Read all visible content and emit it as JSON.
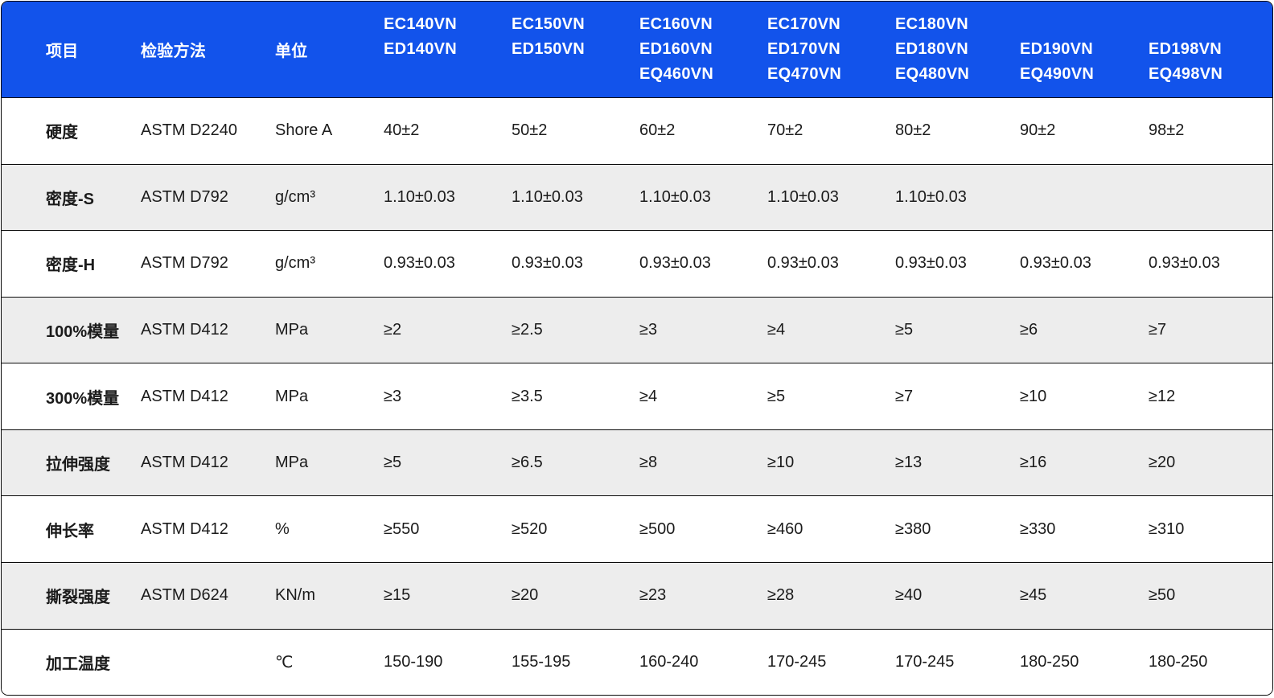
{
  "colors": {
    "header_bg": "#1253EB",
    "header_text": "#FFFFFF",
    "body_text": "#1B1B1B",
    "alt_row_bg": "#EDEDED",
    "border": "#0A0A0A"
  },
  "header": {
    "item": "项目",
    "method": "检验方法",
    "unit": "单位",
    "products": [
      {
        "line1": "EC140VN",
        "line2": "ED140VN",
        "line3": ""
      },
      {
        "line1": "EC150VN",
        "line2": "ED150VN",
        "line3": ""
      },
      {
        "line1": "EC160VN",
        "line2": "ED160VN",
        "line3": "EQ460VN"
      },
      {
        "line1": "EC170VN",
        "line2": "ED170VN",
        "line3": "EQ470VN"
      },
      {
        "line1": "EC180VN",
        "line2": "ED180VN",
        "line3": "EQ480VN"
      },
      {
        "line1": "",
        "line2": "ED190VN",
        "line3": "EQ490VN"
      },
      {
        "line1": "",
        "line2": "ED198VN",
        "line3": "EQ498VN"
      }
    ]
  },
  "chart_data": {
    "type": "table",
    "columns": [
      "项目",
      "检验方法",
      "单位",
      "EC140VN / ED140VN",
      "EC150VN / ED150VN",
      "EC160VN / ED160VN / EQ460VN",
      "EC170VN / ED170VN / EQ470VN",
      "EC180VN / ED180VN / EQ480VN",
      "ED190VN / EQ490VN",
      "ED198VN / EQ498VN"
    ],
    "rows": [
      [
        "硬度",
        "ASTM D2240",
        "Shore A",
        "40±2",
        "50±2",
        "60±2",
        "70±2",
        "80±2",
        "90±2",
        "98±2"
      ],
      [
        "密度-S",
        "ASTM D792",
        "g/cm³",
        "1.10±0.03",
        "1.10±0.03",
        "1.10±0.03",
        "1.10±0.03",
        "1.10±0.03",
        "",
        ""
      ],
      [
        "密度-H",
        "ASTM D792",
        "g/cm³",
        "0.93±0.03",
        "0.93±0.03",
        "0.93±0.03",
        "0.93±0.03",
        "0.93±0.03",
        "0.93±0.03",
        "0.93±0.03"
      ],
      [
        "100%模量",
        "ASTM D412",
        "MPa",
        "≥2",
        "≥2.5",
        "≥3",
        "≥4",
        "≥5",
        "≥6",
        "≥7"
      ],
      [
        "300%模量",
        "ASTM D412",
        "MPa",
        "≥3",
        "≥3.5",
        "≥4",
        "≥5",
        "≥7",
        "≥10",
        "≥12"
      ],
      [
        "拉伸强度",
        "ASTM D412",
        "MPa",
        "≥5",
        "≥6.5",
        "≥8",
        "≥10",
        "≥13",
        "≥16",
        "≥20"
      ],
      [
        "伸长率",
        "ASTM D412",
        "%",
        "≥550",
        "≥520",
        "≥500",
        "≥460",
        "≥380",
        "≥330",
        "≥310"
      ],
      [
        "撕裂强度",
        "ASTM D624",
        "KN/m",
        "≥15",
        "≥20",
        "≥23",
        "≥28",
        "≥40",
        "≥45",
        "≥50"
      ],
      [
        "加工温度",
        "",
        "℃",
        "150-190",
        "155-195",
        "160-240",
        "170-245",
        "170-245",
        "180-250",
        "180-250"
      ]
    ]
  }
}
